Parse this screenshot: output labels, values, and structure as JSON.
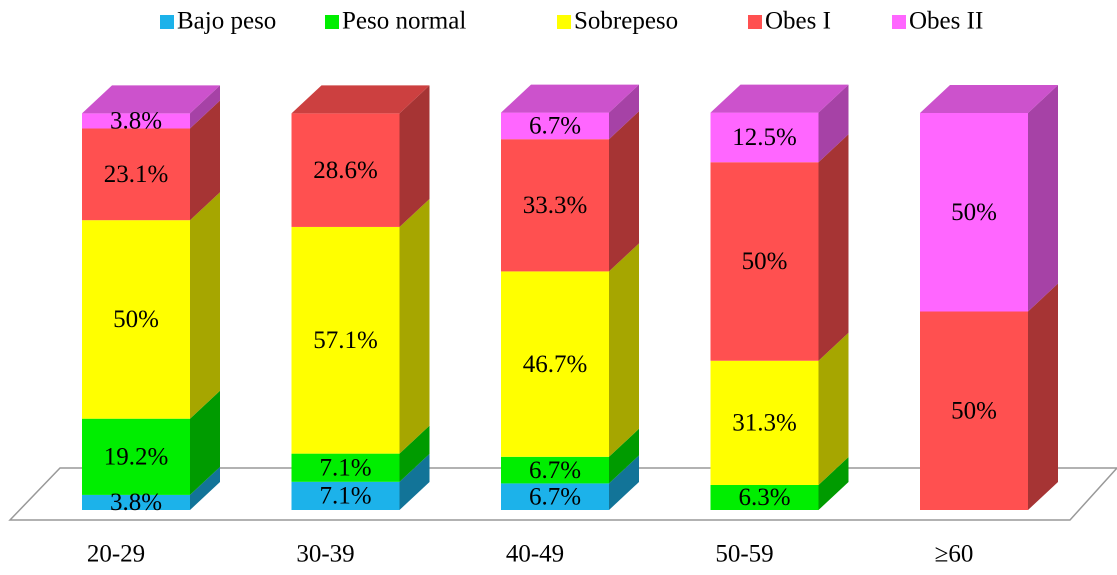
{
  "chart_data": {
    "type": "bar3d_stacked",
    "categories": [
      "20-29",
      "30-39",
      "40-49",
      "50-59",
      "≥60"
    ],
    "ylim": [
      0,
      100
    ],
    "series": [
      {
        "name": "Bajo peso",
        "color": "#1cb2ea",
        "values": [
          3.8,
          7.1,
          6.7,
          null,
          null
        ],
        "value_labels": [
          "3.8%",
          "7.1%",
          "6.7%",
          null,
          null
        ]
      },
      {
        "name": "Peso normal",
        "color": "#00ee00",
        "values": [
          19.2,
          7.1,
          6.7,
          6.3,
          null
        ],
        "value_labels": [
          "19.2%",
          "7.1%",
          "6.7%",
          "6.3%",
          null
        ]
      },
      {
        "name": "Sobrepeso",
        "color": "#ffff00",
        "values": [
          50,
          57.1,
          46.7,
          31.3,
          null
        ],
        "value_labels": [
          "50%",
          "57.1%",
          "46.7%",
          "31.3%",
          null
        ]
      },
      {
        "name": "Obes I",
        "color": "#ff5050",
        "values": [
          23.1,
          28.6,
          33.3,
          50,
          50
        ],
        "value_labels": [
          "23.1%",
          "28.6%",
          "33.3%",
          "50%",
          "50%"
        ]
      },
      {
        "name": "Obes II",
        "color": "#ff66ff",
        "values": [
          3.8,
          null,
          6.7,
          12.5,
          50
        ],
        "value_labels": [
          "3.8%",
          null,
          "6.7%",
          "12.5%",
          "50%"
        ]
      }
    ]
  }
}
